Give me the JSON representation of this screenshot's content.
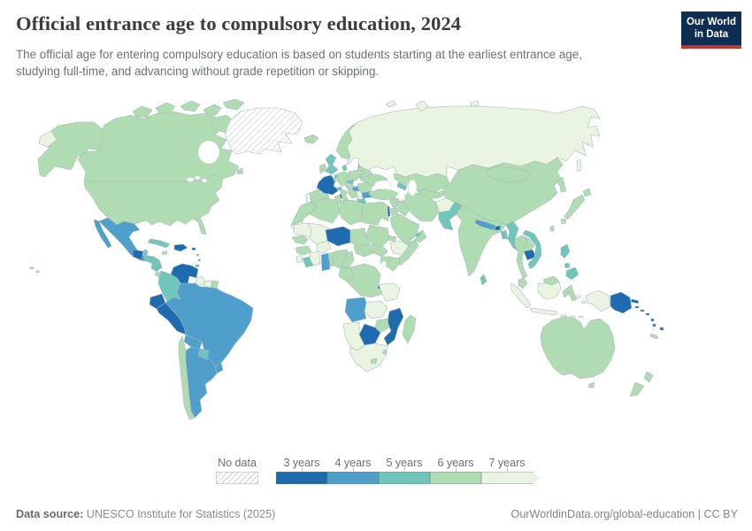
{
  "header": {
    "title": "Official entrance age to compulsory education, 2024",
    "subtitle": "The official age for entering compulsory education is based on students starting at the earliest entrance age, studying full-time, and advancing without grade repetition or skipping."
  },
  "logo": {
    "line1": "Our World",
    "line2": "in Data",
    "navy": "#0d2d52",
    "red": "#c5342c"
  },
  "legend": {
    "no_data_label": "No data"
  },
  "footer": {
    "source_label": "Data source:",
    "source_value": " UNESCO Institute for Statistics (2025)",
    "right": "OurWorldinData.org/global-education | CC BY"
  },
  "chart_data": {
    "type": "choropleth",
    "title": "Official entrance age to compulsory education, 2024",
    "year": "2024",
    "unit": "years",
    "legend_position": "bottom",
    "bins": [
      {
        "value": "3",
        "label": "3 years"
      },
      {
        "value": "4",
        "label": "4 years"
      },
      {
        "value": "5",
        "label": "5 years"
      },
      {
        "value": "6",
        "label": "6 years"
      },
      {
        "value": "7",
        "label": "7 years"
      }
    ],
    "colors": {
      "3": "#1e6bb0",
      "4": "#4f9fcd",
      "5": "#70c5bd",
      "6": "#b0dcb2",
      "7": "#e9f4e1"
    },
    "no_data_style": "white-gray-hatch",
    "values": {
      "alaska": "6",
      "canada": "6",
      "usa": "6",
      "hawaii": "6",
      "greenland": "no-data",
      "chukotka": "7",
      "mexico": "4",
      "guatemala": "3",
      "belize": "5",
      "honduras": "5",
      "nicaragua": "5",
      "costa-rica-panama": "6",
      "cuba": "5",
      "jamaica": "6",
      "hispaniola": "3",
      "puerto-rico": "3",
      "lesser-antilles": "5",
      "trinidad": "5",
      "venezuela": "3",
      "colombia": "5",
      "ecuador": "3",
      "peru": "3",
      "guyana": "7",
      "suriname": "7",
      "french-guiana": "6",
      "brazil": "4",
      "bolivia": "4",
      "paraguay": "5",
      "uruguay": "4",
      "argentina": "4",
      "chile": "6",
      "iceland": "6",
      "norway-sweden": "6",
      "finland": "6",
      "denmark": "5",
      "uk": "5",
      "ireland": "6",
      "portugal": "7",
      "spain": "6",
      "france": "3",
      "corsica": "3",
      "belgium": "6",
      "netherlands": "5",
      "germany": "6",
      "switzerland": "5",
      "italy": "6",
      "sardinia": "6",
      "sicily": "6",
      "austria": "6",
      "czechia": "5",
      "poland": "6",
      "hungary": "4",
      "croatia-bosnia": "6",
      "serbia": "7",
      "albania": "6",
      "greece": "5",
      "crete": "5",
      "bulgaria": "4",
      "romania": "6",
      "ukraine": "6",
      "belarus": "6",
      "estonia": "6",
      "latvia": "5",
      "lithuania": "6",
      "russia": "7",
      "novaya-zemlya": "7",
      "svalbard": "7",
      "severnaya-zemlya": "7",
      "sakhalin": "7",
      "kazakhstan": "6",
      "central-asia": "6",
      "turkmenistan": "7",
      "caucasus": "5",
      "turkey": "6",
      "cyprus": "5",
      "syria": "6",
      "israel": "3",
      "jordan": "6",
      "iraq": "6",
      "iran": "6",
      "saudi-arabia": "6",
      "yemen": "6",
      "oman": "6",
      "uae": "5",
      "afghanistan": "7",
      "pakistan": "5",
      "india": "6",
      "nepal": "4",
      "bhutan": "3",
      "bangladesh": "5",
      "sri-lanka": "5",
      "china": "6",
      "mongolia": "6",
      "north-korea": "6",
      "south-korea": "6",
      "japan": "6",
      "taiwan": "6",
      "myanmar": "5",
      "thailand": "6",
      "laos": "6",
      "cambodia": "3",
      "vietnam": "5",
      "philippines": "5",
      "malaysia": "6",
      "malaysian-borneo": "6",
      "sumatra": "7",
      "java": "7",
      "kalimantan": "7",
      "sulawesi": "6",
      "lesser-sunda": "7",
      "maluku": "7",
      "west-papua": "7",
      "papua-new-guinea": "3",
      "new-britain": "3",
      "solomon-islands": "3",
      "vanuatu": "3",
      "fiji": "3",
      "new-caledonia": "6",
      "morocco": "6",
      "western-sahara": "no-data",
      "algeria": "6",
      "tunisia": "6",
      "libya": "6",
      "egypt": "6",
      "mauritania": "7",
      "mali": "7",
      "senegal": "6",
      "guinea": "6",
      "sierra-leone": "7",
      "liberia": "5",
      "cote-divoire": "7",
      "burkina-faso": "7",
      "ghana": "4",
      "togo-benin": "6",
      "niger": "3",
      "nigeria": "6",
      "chad": "6",
      "sudan": "6",
      "eritrea": "6",
      "ethiopia": "7",
      "somalia": "6",
      "south-sudan": "6",
      "central-african-republic": "6",
      "cameroon": "6",
      "gabon-congo": "6",
      "drc": "6",
      "uganda": "6",
      "kenya": "6",
      "rwanda-burundi": "3",
      "tanzania": "7",
      "angola": "4",
      "zambia": "7",
      "malawi": "3",
      "mozambique": "3",
      "zimbabwe": "6",
      "botswana": "3",
      "namibia": "7",
      "south-africa": "7",
      "lesotho": "6",
      "eswatini": "6",
      "madagascar": "6",
      "australia": "6",
      "tasmania": "6",
      "new-zealand": "6"
    }
  }
}
